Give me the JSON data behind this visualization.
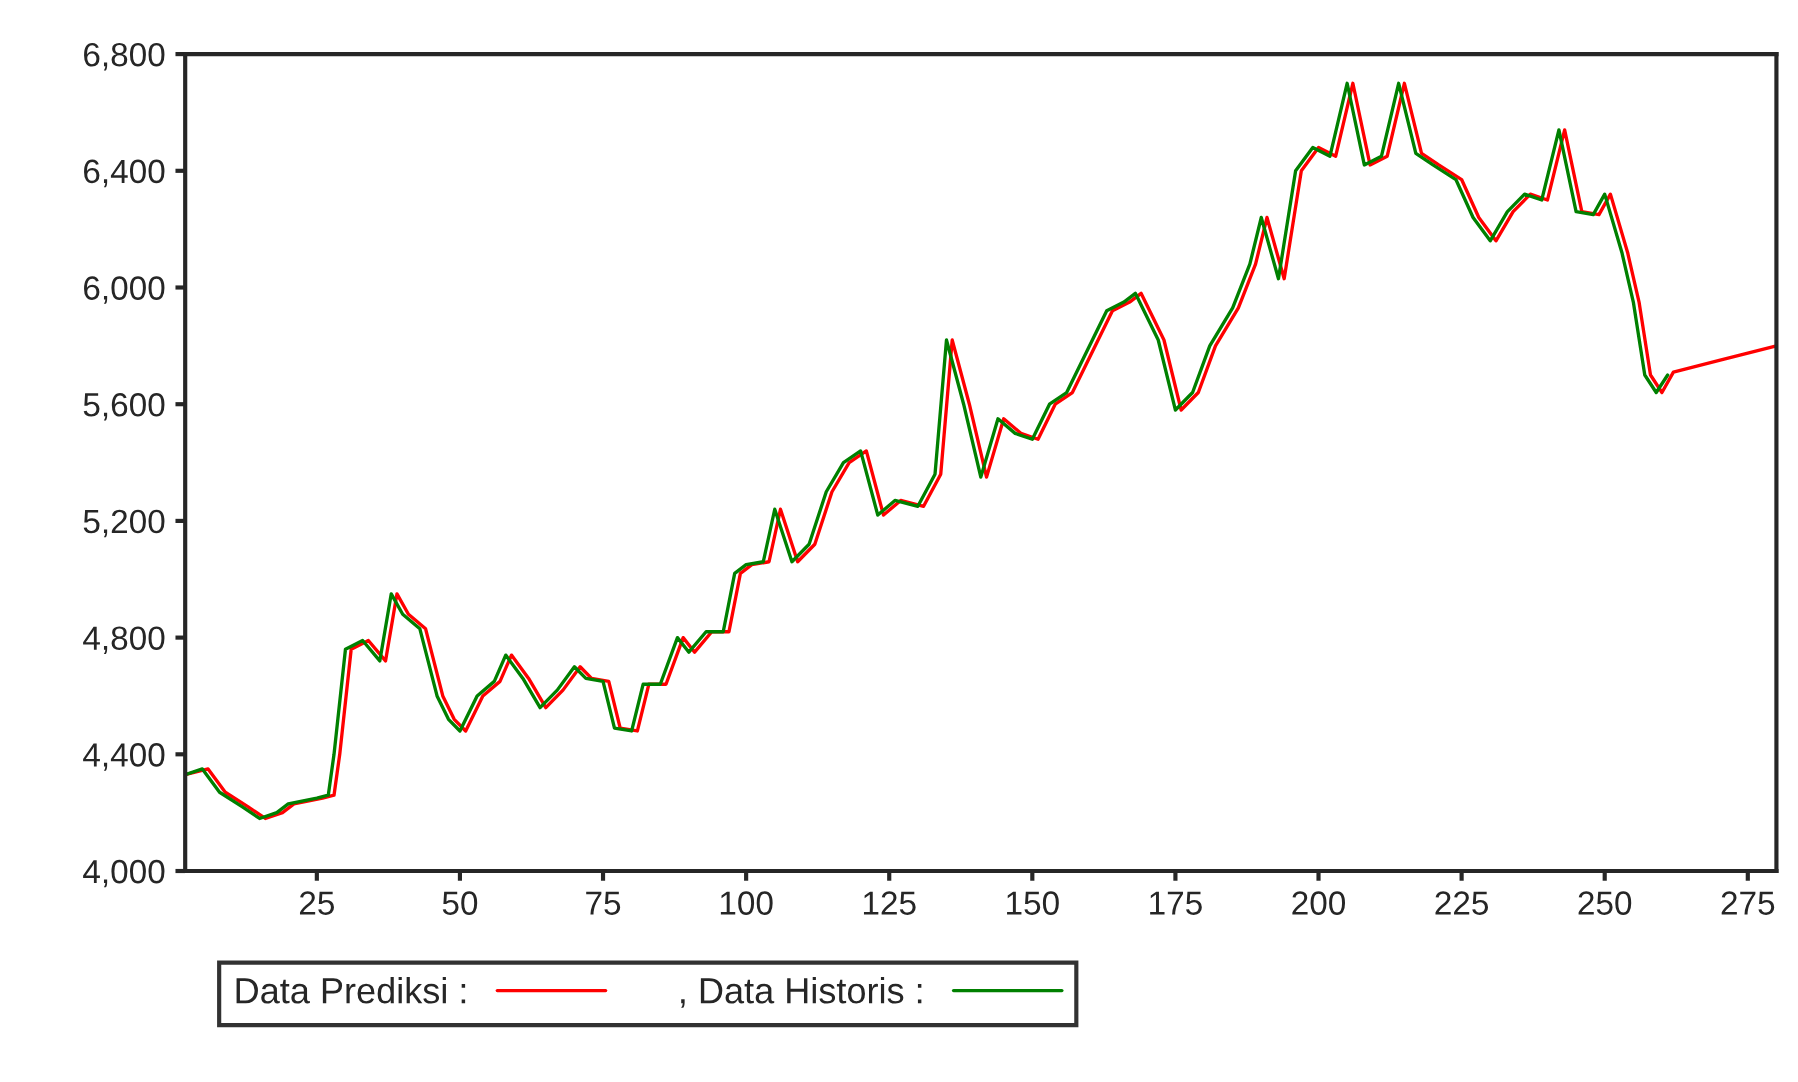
{
  "chart_data": {
    "type": "line",
    "xlim": [
      2,
      280
    ],
    "ylim": [
      4000,
      6800
    ],
    "xticks": [
      25,
      50,
      75,
      100,
      125,
      150,
      175,
      200,
      225,
      250,
      275
    ],
    "yticks": [
      {
        "value": 4000,
        "label": "4,000"
      },
      {
        "value": 4400,
        "label": "4,400"
      },
      {
        "value": 4800,
        "label": "4,800"
      },
      {
        "value": 5200,
        "label": "5,200"
      },
      {
        "value": 5600,
        "label": "5,600"
      },
      {
        "value": 6000,
        "label": "6,000"
      },
      {
        "value": 6400,
        "label": "6,400"
      },
      {
        "value": 6800,
        "label": "6,800"
      }
    ],
    "grid": false,
    "legend": "bottom",
    "line_style": "solid",
    "marker": "none",
    "series": [
      {
        "name": "Data Prediksi :",
        "color": "#ff0000",
        "x": [
          2,
          6,
          9,
          13,
          16,
          19,
          21,
          26,
          28,
          29,
          31,
          34,
          37,
          39,
          41,
          44,
          47,
          49,
          51,
          54,
          57,
          59,
          62,
          65,
          68,
          71,
          73,
          76,
          78,
          81,
          83,
          86,
          89,
          91,
          94,
          97,
          99,
          101,
          104,
          106,
          109,
          112,
          115,
          118,
          121,
          124,
          127,
          131,
          134,
          136,
          139,
          142,
          145,
          148,
          151,
          154,
          157,
          161,
          164,
          167,
          169,
          173,
          176,
          179,
          182,
          186,
          189,
          191,
          194,
          197,
          200,
          203,
          206,
          209,
          212,
          215,
          218,
          221,
          225,
          228,
          231,
          234,
          237,
          240,
          243,
          246,
          249,
          251,
          254,
          256,
          258,
          260,
          262,
          270,
          280
        ],
        "values": [
          4330,
          4350,
          4270,
          4220,
          4180,
          4200,
          4230,
          4250,
          4260,
          4400,
          4760,
          4790,
          4720,
          4950,
          4880,
          4830,
          4600,
          4520,
          4480,
          4600,
          4650,
          4740,
          4660,
          4560,
          4620,
          4700,
          4660,
          4650,
          4490,
          4480,
          4640,
          4640,
          4800,
          4750,
          4820,
          4820,
          5020,
          5050,
          5060,
          5240,
          5060,
          5120,
          5300,
          5400,
          5440,
          5220,
          5270,
          5250,
          5360,
          5820,
          5600,
          5350,
          5550,
          5500,
          5480,
          5600,
          5640,
          5800,
          5920,
          5950,
          5980,
          5820,
          5580,
          5640,
          5800,
          5930,
          6080,
          6240,
          6030,
          6400,
          6480,
          6450,
          6700,
          6420,
          6450,
          6700,
          6460,
          6420,
          6370,
          6240,
          6160,
          6260,
          6320,
          6300,
          6540,
          6260,
          6250,
          6320,
          6120,
          5950,
          5700,
          5640,
          5710,
          5750,
          5800
        ]
      },
      {
        "name": ", Data Historis :",
        "color": "#008000",
        "x": [
          2,
          5,
          8,
          12,
          15,
          18,
          20,
          25,
          27,
          28,
          30,
          33,
          36,
          38,
          40,
          43,
          46,
          48,
          50,
          53,
          56,
          58,
          61,
          64,
          67,
          70,
          72,
          75,
          77,
          80,
          82,
          85,
          88,
          90,
          93,
          96,
          98,
          100,
          103,
          105,
          108,
          111,
          114,
          117,
          120,
          123,
          126,
          130,
          133,
          135,
          138,
          141,
          144,
          147,
          150,
          153,
          156,
          160,
          163,
          166,
          168,
          172,
          175,
          178,
          181,
          185,
          188,
          190,
          193,
          196,
          199,
          202,
          205,
          208,
          211,
          214,
          217,
          220,
          224,
          227,
          230,
          233,
          236,
          239,
          242,
          245,
          248,
          250,
          253,
          255,
          257,
          259,
          261
        ],
        "values": [
          4330,
          4350,
          4270,
          4220,
          4180,
          4200,
          4230,
          4250,
          4260,
          4400,
          4760,
          4790,
          4720,
          4950,
          4880,
          4830,
          4600,
          4520,
          4480,
          4600,
          4650,
          4740,
          4660,
          4560,
          4620,
          4700,
          4660,
          4650,
          4490,
          4480,
          4640,
          4640,
          4800,
          4750,
          4820,
          4820,
          5020,
          5050,
          5060,
          5240,
          5060,
          5120,
          5300,
          5400,
          5440,
          5220,
          5270,
          5250,
          5360,
          5820,
          5600,
          5350,
          5550,
          5500,
          5480,
          5600,
          5640,
          5800,
          5920,
          5950,
          5980,
          5820,
          5580,
          5640,
          5800,
          5930,
          6080,
          6240,
          6030,
          6400,
          6480,
          6450,
          6700,
          6420,
          6450,
          6700,
          6460,
          6420,
          6370,
          6240,
          6160,
          6260,
          6320,
          6300,
          6540,
          6260,
          6250,
          6320,
          6120,
          5950,
          5700,
          5640,
          5700
        ]
      }
    ]
  }
}
